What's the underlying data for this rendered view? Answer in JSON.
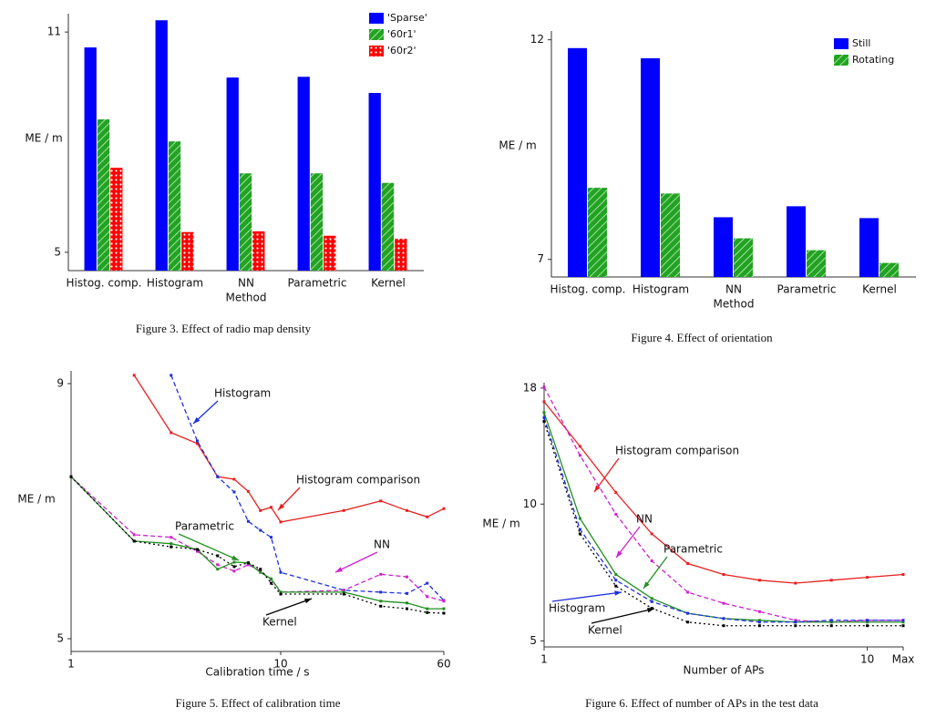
{
  "chart_data": [
    {
      "type": "bar",
      "caption": "Figure 3.   Effect of radio map density",
      "y_label": "ME / m",
      "x_label": "Method",
      "categories": [
        "Histog. comp.",
        "Histogram",
        "NN",
        "Parametric",
        "Kernel"
      ],
      "series": [
        {
          "name": "'Sparse'",
          "color": "#0000ff",
          "pattern": "solid",
          "values": [
            10.58,
            11.32,
            9.76,
            9.78,
            9.34
          ]
        },
        {
          "name": "'60r1'",
          "color": "#22a322",
          "pattern": "hatch",
          "values": [
            8.62,
            8.02,
            7.15,
            7.15,
            6.89
          ]
        },
        {
          "name": "'60r2'",
          "color": "#ff0000",
          "pattern": "dots",
          "values": [
            7.3,
            5.55,
            5.57,
            5.45,
            5.37
          ]
        }
      ],
      "ylim": [
        4.5,
        11.5
      ],
      "yticks": [
        5,
        11
      ],
      "legend": "top-right"
    },
    {
      "type": "bar",
      "caption": "Figure 4.   Effect of orientation",
      "y_label": "ME / m",
      "x_label": "Method",
      "categories": [
        "Histog. comp.",
        "Histogram",
        "NN",
        "Parametric",
        "Kernel"
      ],
      "series": [
        {
          "name": "Still",
          "color": "#0000ff",
          "pattern": "solid",
          "values": [
            11.81,
            11.58,
            7.96,
            8.21,
            7.94
          ]
        },
        {
          "name": "Rotating",
          "color": "#22a322",
          "pattern": "hatch",
          "values": [
            8.63,
            8.5,
            7.48,
            7.21,
            6.92
          ]
        }
      ],
      "ylim": [
        6.6,
        12.2
      ],
      "yticks": [
        7,
        12
      ],
      "legend": "top-right"
    },
    {
      "type": "line",
      "caption": "Figure 5.   Effect of calibration time",
      "y_label": "ME / m",
      "x_label": "Calibration time / s",
      "x": [
        1,
        2,
        3,
        4,
        5,
        6,
        7,
        8,
        9,
        10,
        20,
        30,
        40,
        50,
        60
      ],
      "xscale": "log",
      "series": [
        {
          "name": "Histogram comparison",
          "color": "#e82020",
          "dash": "solid",
          "values": [
            null,
            9.13,
            8.23,
            8.06,
            7.54,
            7.5,
            7.31,
            7.01,
            7.06,
            6.83,
            7.01,
            7.16,
            7.01,
            6.91,
            7.04
          ]
        },
        {
          "name": "Histogram",
          "color": "#2030e0",
          "dash": "dashed",
          "values": [
            null,
            null,
            9.13,
            8.1,
            7.54,
            7.3,
            6.84,
            6.7,
            6.59,
            6.04,
            5.76,
            5.73,
            5.71,
            5.87,
            5.6
          ]
        },
        {
          "name": "NN",
          "color": "#d020d0",
          "dash": "dashed",
          "values": [
            7.54,
            6.63,
            6.59,
            6.37,
            6.16,
            6.06,
            6.16,
            6.06,
            5.93,
            5.73,
            5.76,
            6.01,
            5.97,
            5.66,
            5.59
          ]
        },
        {
          "name": "Parametric",
          "color": "#209020",
          "dash": "solid",
          "values": [
            7.54,
            6.53,
            6.49,
            6.4,
            6.09,
            6.2,
            6.19,
            6.04,
            5.94,
            5.73,
            5.73,
            5.59,
            5.56,
            5.47,
            5.47
          ]
        },
        {
          "name": "Kernel",
          "color": "#000000",
          "dash": "dotted",
          "values": [
            7.54,
            6.53,
            6.44,
            6.4,
            6.3,
            6.13,
            6.19,
            6.09,
            5.87,
            5.7,
            5.7,
            5.51,
            5.47,
            5.41,
            5.4
          ]
        }
      ],
      "xlim": [
        1,
        60
      ],
      "xticks": [
        1,
        10,
        60
      ],
      "ylim": [
        4.8,
        9.2
      ],
      "yticks": [
        5,
        9
      ]
    },
    {
      "type": "line",
      "caption": "Figure 6.   Effect of number of APs in the test data",
      "y_label": "ME / m",
      "x_label": "Number of APs",
      "x": [
        1,
        2,
        3,
        4,
        5,
        6,
        7,
        8,
        9,
        10,
        11
      ],
      "yscale": "log",
      "series": [
        {
          "name": "Histogram comparison",
          "color": "#e82020",
          "dash": "solid",
          "values": [
            16.8,
            13.4,
            10.6,
            8.6,
            7.4,
            7.0,
            6.8,
            6.7,
            6.8,
            6.9,
            7.0
          ]
        },
        {
          "name": "NN",
          "color": "#d020d0",
          "dash": "dashed",
          "values": [
            18.1,
            12.8,
            9.5,
            7.5,
            6.4,
            6.05,
            5.8,
            5.55,
            5.5,
            5.55,
            5.55
          ]
        },
        {
          "name": "Parametric",
          "color": "#209020",
          "dash": "solid",
          "values": [
            15.9,
            9.3,
            7.0,
            6.2,
            5.75,
            5.6,
            5.55,
            5.5,
            5.5,
            5.5,
            5.5
          ]
        },
        {
          "name": "Histogram",
          "color": "#2030e0",
          "dash": "dashed",
          "values": [
            15.5,
            8.8,
            6.8,
            6.1,
            5.75,
            5.6,
            5.5,
            5.5,
            5.55,
            5.55,
            5.55
          ]
        },
        {
          "name": "Kernel",
          "color": "#000000",
          "dash": "dotted",
          "values": [
            15.2,
            8.6,
            6.6,
            5.9,
            5.5,
            5.4,
            5.4,
            5.4,
            5.4,
            5.4,
            5.4
          ]
        }
      ],
      "xlim": [
        1,
        11
      ],
      "xticks": [
        1,
        10,
        {
          "value": 11,
          "label": "Max"
        }
      ],
      "ylim": [
        4.85,
        18.5
      ],
      "yticks": [
        5,
        10,
        18
      ]
    }
  ]
}
